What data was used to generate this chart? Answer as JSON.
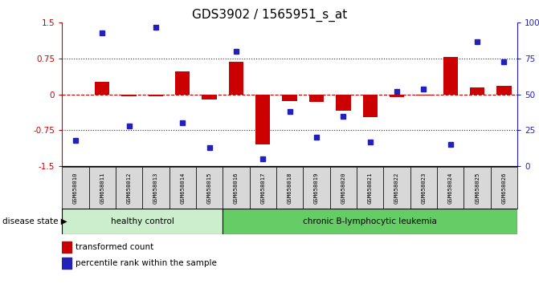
{
  "title": "GDS3902 / 1565951_s_at",
  "samples": [
    "GSM658010",
    "GSM658011",
    "GSM658012",
    "GSM658013",
    "GSM658014",
    "GSM658015",
    "GSM658016",
    "GSM658017",
    "GSM658018",
    "GSM658019",
    "GSM658020",
    "GSM658021",
    "GSM658022",
    "GSM658023",
    "GSM658024",
    "GSM658025",
    "GSM658026"
  ],
  "transformed_count": [
    0.0,
    0.27,
    -0.04,
    -0.04,
    0.48,
    -0.1,
    0.68,
    -1.05,
    -0.14,
    -0.16,
    -0.34,
    -0.48,
    -0.05,
    -0.03,
    0.78,
    0.15,
    0.18
  ],
  "percentile_rank": [
    18,
    93,
    28,
    97,
    30,
    13,
    80,
    5,
    38,
    20,
    35,
    17,
    52,
    54,
    15,
    87,
    73
  ],
  "healthy_control_count": 6,
  "ylim_left": [
    -1.5,
    1.5
  ],
  "ylim_right": [
    0,
    100
  ],
  "yticks_left": [
    -1.5,
    -0.75,
    0.0,
    0.75,
    1.5
  ],
  "ytick_labels_left": [
    "-1.5",
    "-0.75",
    "0",
    "0.75",
    "1.5"
  ],
  "yticks_right": [
    0,
    25,
    50,
    75,
    100
  ],
  "ytick_labels_right": [
    "0",
    "25",
    "50",
    "75",
    "100%"
  ],
  "bar_color": "#cc0000",
  "dot_color": "#2222bb",
  "healthy_bg": "#cceecc",
  "disease_bg": "#66cc66",
  "sample_bg": "#d8d8d8",
  "disease_label": "chronic B-lymphocytic leukemia",
  "healthy_label": "healthy control",
  "disease_state_label": "disease state",
  "legend_bar_label": "transformed count",
  "legend_dot_label": "percentile rank within the sample",
  "left_axis_color": "#cc0000",
  "right_axis_color": "#2222bb",
  "zero_line_color": "#cc0000",
  "dotted_line_color": "#333333"
}
